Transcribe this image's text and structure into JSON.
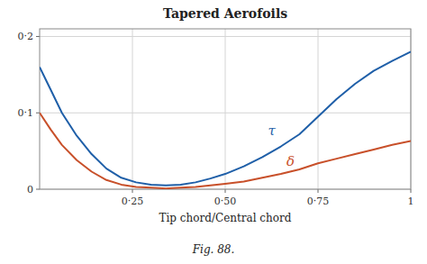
{
  "chart_data": {
    "type": "line",
    "title": "Tapered Aerofoils",
    "xlabel": "Tip chord/Central chord",
    "caption": "Fig. 88.",
    "x": [
      0.0,
      0.03,
      0.06,
      0.1,
      0.14,
      0.18,
      0.22,
      0.26,
      0.3,
      0.34,
      0.38,
      0.42,
      0.46,
      0.5,
      0.55,
      0.6,
      0.65,
      0.7,
      0.75,
      0.8,
      0.85,
      0.9,
      0.95,
      1.0
    ],
    "series": [
      {
        "values": [
          0.16,
          0.13,
          0.1,
          0.07,
          0.046,
          0.027,
          0.015,
          0.009,
          0.006,
          0.005,
          0.006,
          0.009,
          0.014,
          0.02,
          0.03,
          0.042,
          0.056,
          0.072,
          0.095,
          0.118,
          0.138,
          0.155,
          0.168,
          0.18
        ]
      },
      {
        "values": [
          0.1,
          0.078,
          0.058,
          0.038,
          0.023,
          0.012,
          0.006,
          0.003,
          0.002,
          0.001,
          0.002,
          0.003,
          0.005,
          0.007,
          0.01,
          0.015,
          0.02,
          0.026,
          0.034,
          0.04,
          0.046,
          0.052,
          0.058,
          0.063
        ]
      }
    ],
    "annotations": [
      {
        "text": "τ",
        "x": 0.615,
        "y": 0.077
      },
      {
        "text": "δ",
        "x": 0.665,
        "y": 0.036
      }
    ],
    "xlim": [
      0,
      1
    ],
    "xticks": [
      {
        "value": 0.25,
        "label": "0·25"
      },
      {
        "value": 0.5,
        "label": "0·50"
      },
      {
        "value": 0.75,
        "label": "0·75"
      },
      1
    ],
    "ylim": [
      0,
      0.21
    ],
    "yticks": [
      0,
      {
        "value": 0.1,
        "label": "0·1"
      },
      {
        "value": 0.2,
        "label": "0·2"
      }
    ],
    "grid": true
  }
}
